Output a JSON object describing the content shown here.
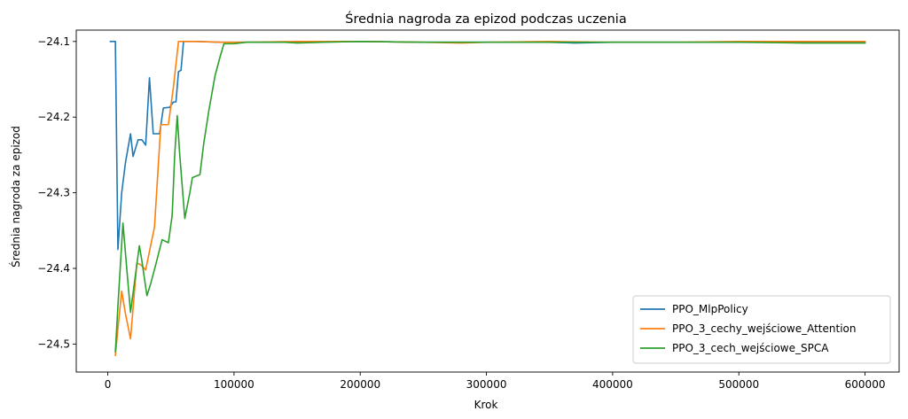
{
  "chart_data": {
    "type": "line",
    "title": "Średnia nagroda za epizod podczas uczenia",
    "xlabel": "Krok",
    "ylabel": "Średnia nagroda za epizod",
    "xlim": [
      -25000,
      627000
    ],
    "ylim": [
      -24.537,
      -24.085
    ],
    "xticks": [
      {
        "value": 0,
        "label": "0"
      },
      {
        "value": 100000,
        "label": "100000"
      },
      {
        "value": 200000,
        "label": "200000"
      },
      {
        "value": 300000,
        "label": "300000"
      },
      {
        "value": 400000,
        "label": "400000"
      },
      {
        "value": 500000,
        "label": "500000"
      },
      {
        "value": 600000,
        "label": "600000"
      }
    ],
    "yticks": [
      {
        "value": -24.1,
        "label": "−24.1"
      },
      {
        "value": -24.2,
        "label": "−24.2"
      },
      {
        "value": -24.3,
        "label": "−24.3"
      },
      {
        "value": -24.4,
        "label": "−24.4"
      },
      {
        "value": -24.5,
        "label": "−24.5"
      }
    ],
    "grid": false,
    "legend_position": "bottom-right",
    "series": [
      {
        "name": "PPO_MlpPolicy",
        "color": "#1f77b4",
        "points": [
          [
            2000,
            -24.1
          ],
          [
            6000,
            -24.1
          ],
          [
            8000,
            -24.375
          ],
          [
            11000,
            -24.3
          ],
          [
            14000,
            -24.26
          ],
          [
            18000,
            -24.222
          ],
          [
            20000,
            -24.252
          ],
          [
            24000,
            -24.23
          ],
          [
            27000,
            -24.23
          ],
          [
            30000,
            -24.237
          ],
          [
            33000,
            -24.148
          ],
          [
            36000,
            -24.222
          ],
          [
            41000,
            -24.222
          ],
          [
            44000,
            -24.188
          ],
          [
            49000,
            -24.187
          ],
          [
            52000,
            -24.18
          ],
          [
            54000,
            -24.18
          ],
          [
            56000,
            -24.14
          ],
          [
            58000,
            -24.138
          ],
          [
            60000,
            -24.1
          ],
          [
            70000,
            -24.1
          ],
          [
            90000,
            -24.101
          ],
          [
            110000,
            -24.101
          ],
          [
            150000,
            -24.101
          ],
          [
            200000,
            -24.1
          ],
          [
            250000,
            -24.101
          ],
          [
            300000,
            -24.101
          ],
          [
            350000,
            -24.101
          ],
          [
            370000,
            -24.102
          ],
          [
            400000,
            -24.101
          ],
          [
            450000,
            -24.101
          ],
          [
            500000,
            -24.101
          ],
          [
            550000,
            -24.101
          ],
          [
            600000,
            -24.101
          ]
        ]
      },
      {
        "name": "PPO_3_cechy_wejściowe_Attention",
        "color": "#ff7f0e",
        "points": [
          [
            6000,
            -24.515
          ],
          [
            8000,
            -24.48
          ],
          [
            11000,
            -24.43
          ],
          [
            14000,
            -24.46
          ],
          [
            18000,
            -24.493
          ],
          [
            23000,
            -24.393
          ],
          [
            26000,
            -24.395
          ],
          [
            30000,
            -24.402
          ],
          [
            37000,
            -24.345
          ],
          [
            42000,
            -24.21
          ],
          [
            48000,
            -24.21
          ],
          [
            52000,
            -24.16
          ],
          [
            56000,
            -24.1
          ],
          [
            70000,
            -24.1
          ],
          [
            90000,
            -24.101
          ],
          [
            110000,
            -24.101
          ],
          [
            150000,
            -24.1
          ],
          [
            200000,
            -24.1
          ],
          [
            250000,
            -24.101
          ],
          [
            280000,
            -24.102
          ],
          [
            300000,
            -24.101
          ],
          [
            350000,
            -24.1
          ],
          [
            400000,
            -24.101
          ],
          [
            450000,
            -24.101
          ],
          [
            500000,
            -24.1
          ],
          [
            550000,
            -24.1
          ],
          [
            600000,
            -24.1
          ]
        ]
      },
      {
        "name": "PPO_3_cech_wejściowe_SPCA",
        "color": "#2ca02c",
        "points": [
          [
            6000,
            -24.51
          ],
          [
            8000,
            -24.45
          ],
          [
            12000,
            -24.34
          ],
          [
            15000,
            -24.4
          ],
          [
            18000,
            -24.458
          ],
          [
            21000,
            -24.42
          ],
          [
            25000,
            -24.37
          ],
          [
            27000,
            -24.39
          ],
          [
            31000,
            -24.436
          ],
          [
            34000,
            -24.42
          ],
          [
            38000,
            -24.395
          ],
          [
            43000,
            -24.362
          ],
          [
            48000,
            -24.366
          ],
          [
            51000,
            -24.33
          ],
          [
            53000,
            -24.25
          ],
          [
            55000,
            -24.198
          ],
          [
            57000,
            -24.25
          ],
          [
            61000,
            -24.334
          ],
          [
            65000,
            -24.3
          ],
          [
            67000,
            -24.28
          ],
          [
            73000,
            -24.276
          ],
          [
            76000,
            -24.235
          ],
          [
            80000,
            -24.192
          ],
          [
            85000,
            -24.145
          ],
          [
            89000,
            -24.12
          ],
          [
            92000,
            -24.103
          ],
          [
            100000,
            -24.103
          ],
          [
            110000,
            -24.101
          ],
          [
            140000,
            -24.101
          ],
          [
            150000,
            -24.102
          ],
          [
            170000,
            -24.101
          ],
          [
            200000,
            -24.1
          ],
          [
            250000,
            -24.101
          ],
          [
            300000,
            -24.101
          ],
          [
            350000,
            -24.101
          ],
          [
            400000,
            -24.101
          ],
          [
            450000,
            -24.101
          ],
          [
            500000,
            -24.101
          ],
          [
            550000,
            -24.102
          ],
          [
            600000,
            -24.102
          ]
        ]
      }
    ]
  }
}
